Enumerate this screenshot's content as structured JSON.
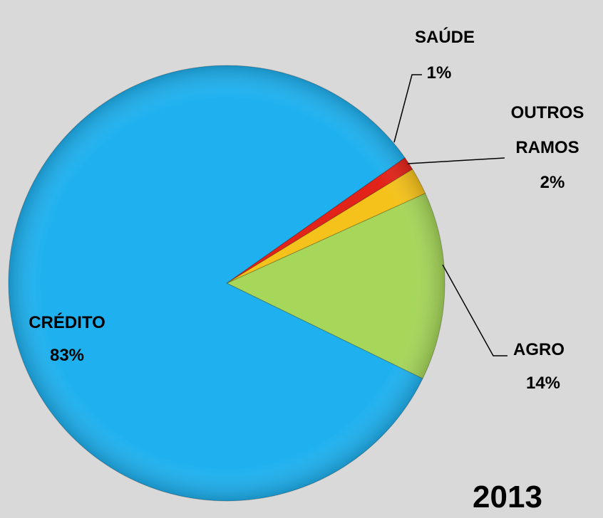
{
  "chart_data": {
    "type": "pie",
    "year_label": "2013",
    "slices": [
      {
        "name": "AGRO",
        "label_lines": [
          "AGRO"
        ],
        "value": 14,
        "value_label": "14%",
        "color": "#a6d65a"
      },
      {
        "name": "OUTROS RAMOS",
        "label_lines": [
          "OUTROS",
          "RAMOS"
        ],
        "value": 2,
        "value_label": "2%",
        "color": "#f5c21b"
      },
      {
        "name": "SAÚDE",
        "label_lines": [
          "SAÚDE"
        ],
        "value": 1,
        "value_label": "1%",
        "color": "#e2231a"
      },
      {
        "name": "CRÉDITO",
        "label_lines": [
          "CRÉDITO"
        ],
        "value": 83,
        "value_label": "83%",
        "color": "#1fb1ef"
      }
    ]
  }
}
